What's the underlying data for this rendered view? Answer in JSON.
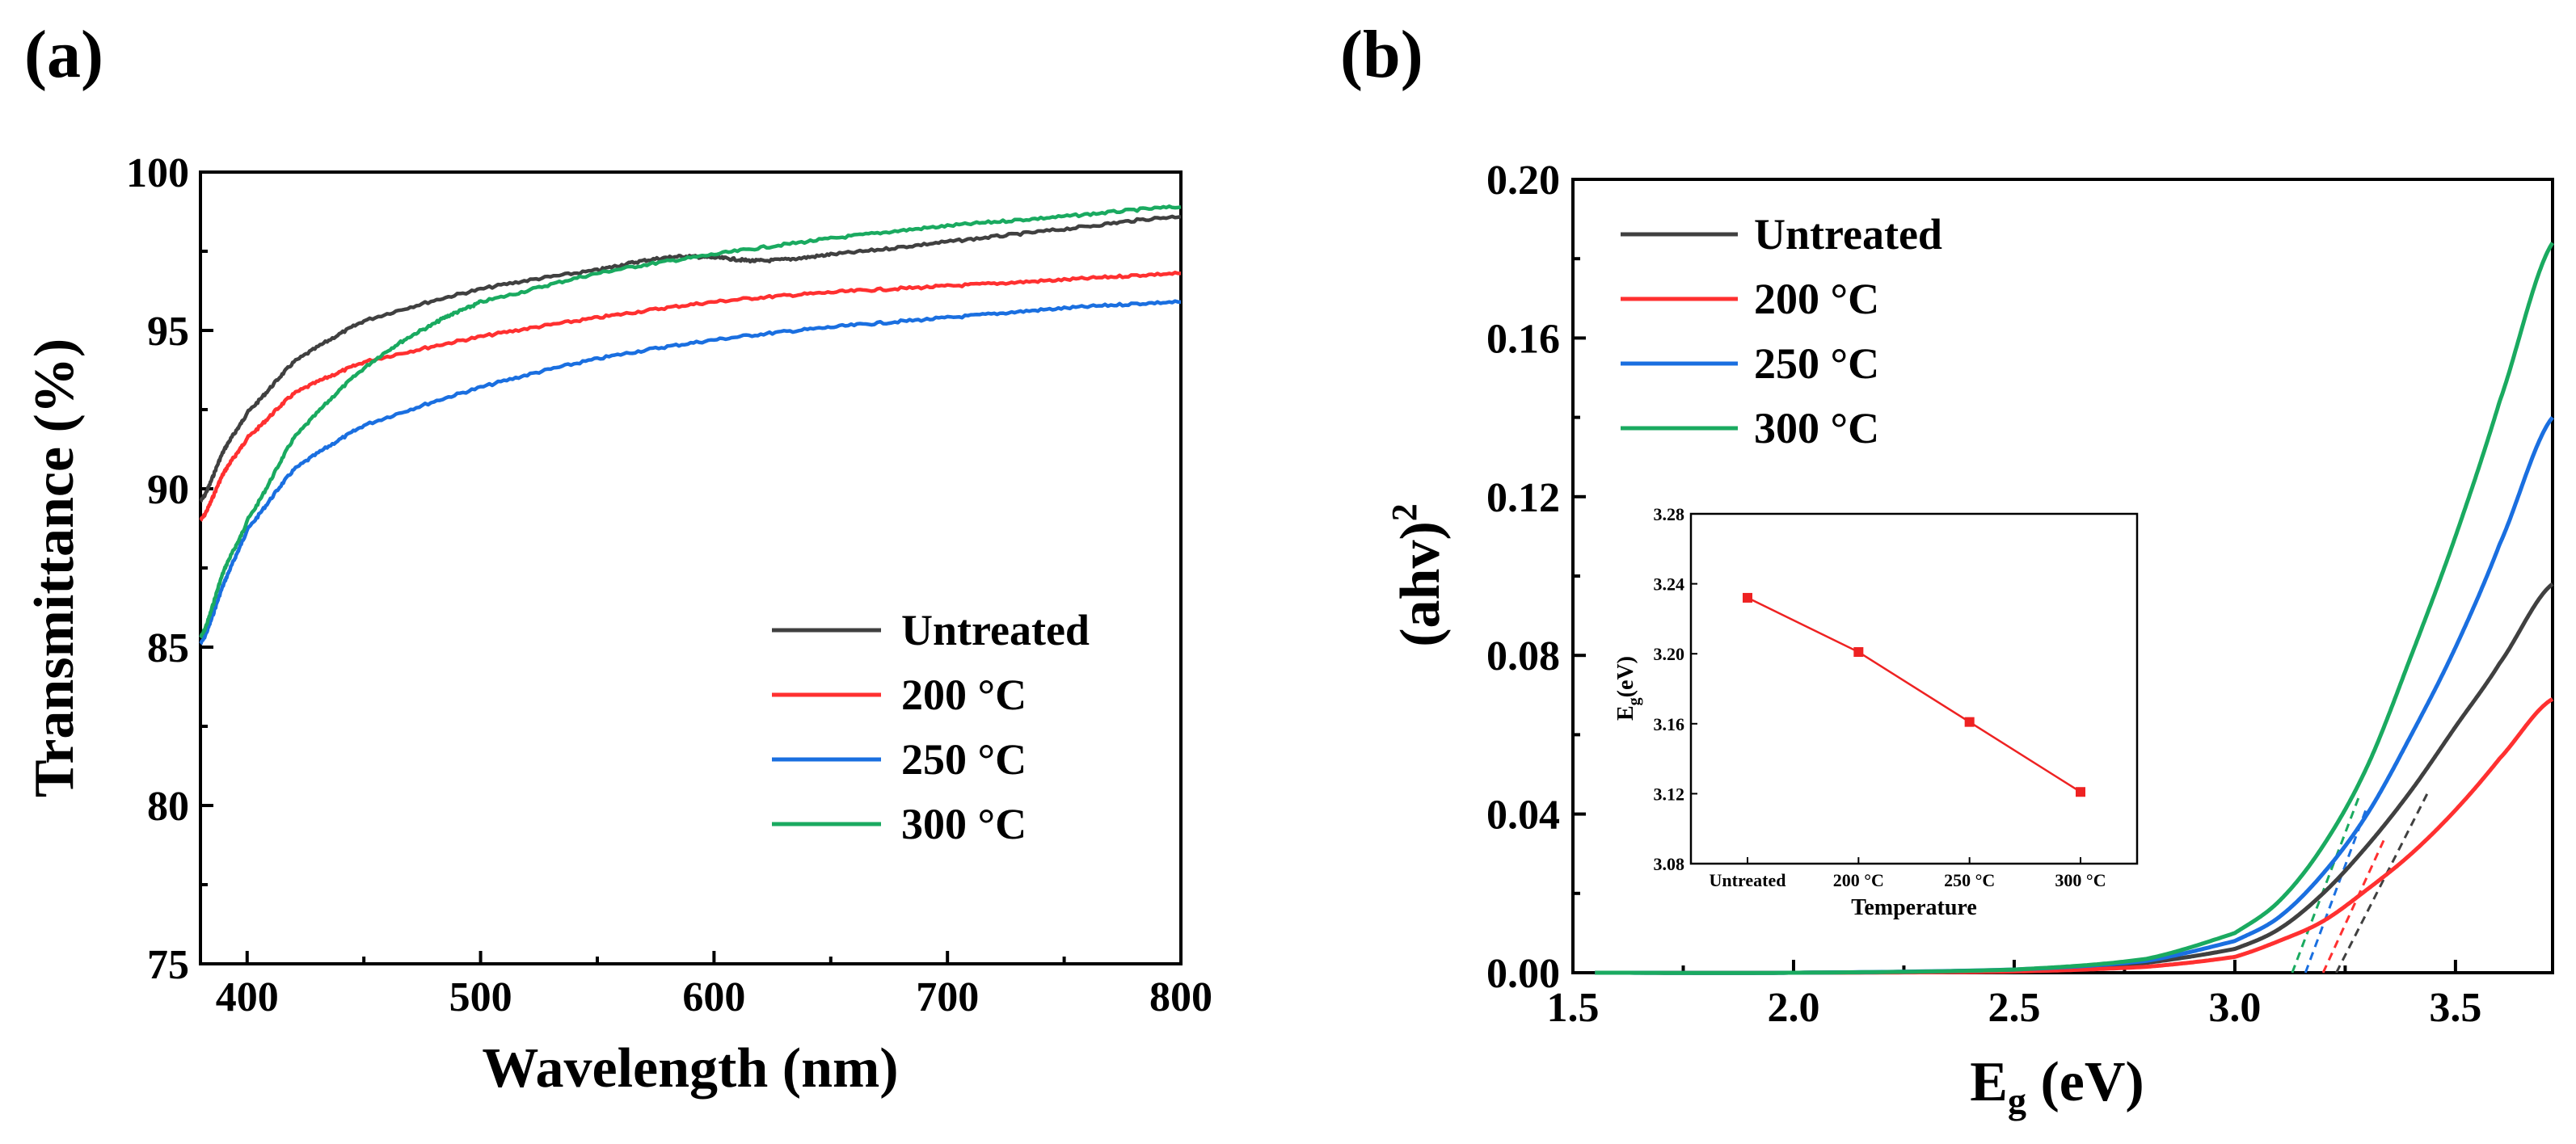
{
  "chart_data": [
    {
      "panel": "(a)",
      "type": "line",
      "xlabel": "Wavelength (nm)",
      "ylabel": "Transmittance (%)",
      "xlim": [
        380,
        800
      ],
      "ylim": [
        75,
        100
      ],
      "xticks": [
        "400",
        "500",
        "600",
        "700",
        "800"
      ],
      "yticks": [
        "75",
        "80",
        "85",
        "90",
        "95",
        "100"
      ],
      "legend_position": "lower-right",
      "series": [
        {
          "name": "Untreated",
          "color": "#404040",
          "x": [
            380,
            390,
            400,
            420,
            450,
            500,
            550,
            580,
            600,
            620,
            650,
            700,
            750,
            800
          ],
          "y": [
            89.6,
            91.2,
            92.4,
            94.0,
            95.3,
            96.3,
            96.9,
            97.3,
            97.3,
            97.2,
            97.4,
            97.8,
            98.2,
            98.6
          ]
        },
        {
          "name": "200 °C",
          "color": "#ff3030",
          "x": [
            380,
            390,
            400,
            420,
            450,
            500,
            550,
            600,
            650,
            700,
            750,
            800
          ],
          "y": [
            89.0,
            90.5,
            91.6,
            93.0,
            94.0,
            94.8,
            95.4,
            95.9,
            96.2,
            96.4,
            96.6,
            96.8
          ]
        },
        {
          "name": "250 °C",
          "color": "#1a6fe0",
          "x": [
            380,
            390,
            400,
            420,
            450,
            500,
            550,
            600,
            650,
            700,
            750,
            800
          ],
          "y": [
            85.1,
            87.0,
            88.7,
            90.6,
            92.0,
            93.2,
            94.1,
            94.7,
            95.1,
            95.4,
            95.7,
            95.9
          ]
        },
        {
          "name": "300 °C",
          "color": "#1aaa60",
          "x": [
            380,
            390,
            400,
            420,
            450,
            480,
            500,
            550,
            600,
            650,
            700,
            750,
            800
          ],
          "y": [
            85.3,
            87.4,
            89.0,
            91.6,
            93.8,
            95.2,
            95.9,
            96.8,
            97.4,
            97.9,
            98.3,
            98.6,
            98.9
          ]
        }
      ]
    },
    {
      "panel": "(b)",
      "type": "line",
      "xlabel": "E",
      "xlabel_sub": "g",
      "xlabel_unit": " (eV)",
      "ylabel": "(ahv)",
      "ylabel_sup": "2",
      "xlim": [
        1.5,
        3.72
      ],
      "ylim": [
        0,
        0.2
      ],
      "xticks": [
        "1.5",
        "2.0",
        "2.5",
        "3.0",
        "3.5"
      ],
      "yticks": [
        "0.00",
        "0.04",
        "0.08",
        "0.12",
        "0.16",
        "0.20"
      ],
      "legend_position": "top-left",
      "series": [
        {
          "name": "Untreated",
          "color": "#404040",
          "x": [
            1.55,
            2.0,
            2.5,
            2.8,
            3.0,
            3.1,
            3.2,
            3.3,
            3.4,
            3.5,
            3.6,
            3.72
          ],
          "y": [
            0,
            0,
            0.0005,
            0.0025,
            0.006,
            0.011,
            0.02,
            0.032,
            0.046,
            0.062,
            0.078,
            0.098
          ]
        },
        {
          "name": "200 °C",
          "color": "#ff3030",
          "x": [
            1.55,
            2.0,
            2.5,
            2.8,
            3.0,
            3.1,
            3.2,
            3.3,
            3.4,
            3.5,
            3.6,
            3.72
          ],
          "y": [
            0,
            0,
            0.0003,
            0.0015,
            0.004,
            0.008,
            0.013,
            0.021,
            0.03,
            0.041,
            0.054,
            0.069
          ]
        },
        {
          "name": "250 °C",
          "color": "#1a6fe0",
          "x": [
            1.55,
            2.0,
            2.5,
            2.8,
            3.0,
            3.1,
            3.2,
            3.3,
            3.4,
            3.5,
            3.6,
            3.72
          ],
          "y": [
            0,
            0,
            0.0008,
            0.003,
            0.008,
            0.014,
            0.025,
            0.04,
            0.06,
            0.082,
            0.108,
            0.14
          ]
        },
        {
          "name": "300 °C",
          "color": "#1aaa60",
          "x": [
            1.55,
            2.0,
            2.5,
            2.8,
            3.0,
            3.1,
            3.2,
            3.3,
            3.4,
            3.5,
            3.6,
            3.72
          ],
          "y": [
            0,
            0,
            0.0008,
            0.0035,
            0.01,
            0.018,
            0.032,
            0.052,
            0.08,
            0.11,
            0.144,
            0.184
          ]
        }
      ],
      "tangent_lines": [
        {
          "color": "#1aaa60",
          "x": [
            3.13,
            3.28
          ],
          "y": [
            0,
            0.044
          ]
        },
        {
          "color": "#1a6fe0",
          "x": [
            3.16,
            3.3
          ],
          "y": [
            0,
            0.042
          ]
        },
        {
          "color": "#ff3030",
          "x": [
            3.2,
            3.34
          ],
          "y": [
            0,
            0.034
          ]
        },
        {
          "color": "#404040",
          "x": [
            3.23,
            3.44
          ],
          "y": [
            0,
            0.046
          ]
        }
      ],
      "inset": {
        "type": "line",
        "color": "#ee2222",
        "xlabel": "Temperature",
        "ylabel": "E",
        "ylabel_sub": "g",
        "ylabel_unit": "(eV)",
        "categories": [
          "Untreated",
          "200 °C",
          "250 °C",
          "300 °C"
        ],
        "values": [
          3.232,
          3.201,
          3.161,
          3.121
        ],
        "ylim": [
          3.08,
          3.28
        ],
        "yticks": [
          "3.08",
          "3.12",
          "3.16",
          "3.20",
          "3.24",
          "3.28"
        ]
      }
    }
  ]
}
